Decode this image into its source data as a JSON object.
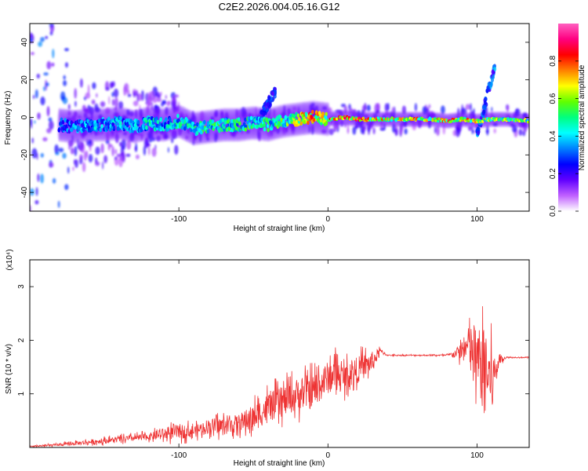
{
  "figure_title": "C2E2.2026.004.05.16.G12",
  "chart_data": [
    {
      "type": "heatmap",
      "name": "spectrogram",
      "xlabel": "Height of straight line (km)",
      "ylabel": "Frequency (Hz)",
      "xlim": [
        -200,
        135
      ],
      "ylim": [
        -50,
        50
      ],
      "x_ticks": [
        -100,
        0,
        100
      ],
      "y_ticks": [
        -40,
        -20,
        0,
        20,
        40
      ],
      "colorbar": {
        "label": "Normalized spectral amplitude",
        "range": [
          0,
          1
        ],
        "ticks": [
          "0.0",
          "0.2",
          "0.4",
          "0.6",
          "0.8"
        ],
        "ticks_values": [
          0.0,
          0.2,
          0.4,
          0.6,
          0.8
        ],
        "colors": [
          "#ffffff",
          "#c060ff",
          "#6000ff",
          "#0000ff",
          "#0080ff",
          "#00ffff",
          "#00ff80",
          "#60ff00",
          "#ffff00",
          "#ff8000",
          "#ff0000",
          "#ff0080",
          "#ff60c0"
        ]
      },
      "ridge": {
        "x": [
          -200,
          -180,
          -170,
          -160,
          -150,
          -140,
          -130,
          -120,
          -110,
          -100,
          -90,
          -80,
          -70,
          -60,
          -50,
          -40,
          -30,
          -20,
          -10,
          0,
          10,
          20,
          30,
          40,
          50,
          60,
          70,
          80,
          90,
          100,
          110,
          120,
          135
        ],
        "freq": [
          -3,
          -4,
          -5,
          -4,
          -4,
          -3,
          -5,
          -3,
          -4,
          -2,
          -6,
          -5,
          -4,
          -4,
          -3,
          -4,
          -2,
          -1,
          0,
          -1,
          0,
          -1,
          -1,
          -1,
          -1,
          -1,
          -1,
          -2,
          -1,
          -2,
          -1,
          -1,
          -2
        ],
        "amplitude": [
          0.15,
          0.3,
          0.35,
          0.4,
          0.38,
          0.42,
          0.4,
          0.45,
          0.42,
          0.45,
          0.5,
          0.5,
          0.48,
          0.5,
          0.52,
          0.5,
          0.55,
          0.65,
          0.8,
          0.75,
          0.85,
          0.8,
          0.7,
          0.7,
          0.72,
          0.72,
          0.7,
          0.75,
          0.72,
          0.7,
          0.6,
          0.6,
          0.6
        ]
      },
      "features": [
        {
          "x": [
            -45,
            -35
          ],
          "freq": [
            0,
            15
          ],
          "amplitude": 0.3,
          "note": "upward spur"
        },
        {
          "x": [
            100,
            112
          ],
          "freq": [
            -10,
            28
          ],
          "amplitude": 0.35,
          "note": "vertical streak"
        }
      ]
    },
    {
      "type": "line",
      "name": "snr",
      "xlabel": "Height of straight line (km)",
      "ylabel": "SNR (10 * v/v)",
      "y_scale_label": "(x10⁴)",
      "xlim": [
        -200,
        135
      ],
      "ylim": [
        0,
        3.5
      ],
      "x_ticks": [
        -100,
        0,
        100
      ],
      "y_ticks": [
        1,
        2,
        3
      ],
      "color": "#ee3333",
      "series": [
        {
          "name": "SNR",
          "x": [
            -200,
            -180,
            -160,
            -140,
            -120,
            -110,
            -100,
            -90,
            -80,
            -70,
            -60,
            -50,
            -40,
            -30,
            -20,
            -10,
            0,
            5,
            10,
            20,
            30,
            35,
            40,
            50,
            60,
            70,
            80,
            85,
            90,
            95,
            100,
            105,
            110,
            115,
            120,
            135
          ],
          "y": [
            0.02,
            0.05,
            0.1,
            0.15,
            0.2,
            0.25,
            0.3,
            0.3,
            0.4,
            0.4,
            0.45,
            0.55,
            0.75,
            0.85,
            1.0,
            1.05,
            1.3,
            1.4,
            1.3,
            1.45,
            1.6,
            1.8,
            1.72,
            1.72,
            1.72,
            1.72,
            1.72,
            1.75,
            1.8,
            1.9,
            1.6,
            1.5,
            1.2,
            1.65,
            1.68,
            1.68
          ],
          "noise": [
            0.02,
            0.04,
            0.08,
            0.1,
            0.12,
            0.2,
            0.25,
            0.2,
            0.25,
            0.3,
            0.3,
            0.45,
            0.5,
            0.5,
            0.55,
            0.6,
            0.55,
            0.5,
            0.45,
            0.45,
            0.35,
            0.1,
            0.02,
            0.02,
            0.02,
            0.02,
            0.03,
            0.1,
            0.35,
            0.7,
            1.2,
            1.3,
            1.1,
            0.15,
            0.02,
            0.02
          ]
        }
      ]
    }
  ]
}
